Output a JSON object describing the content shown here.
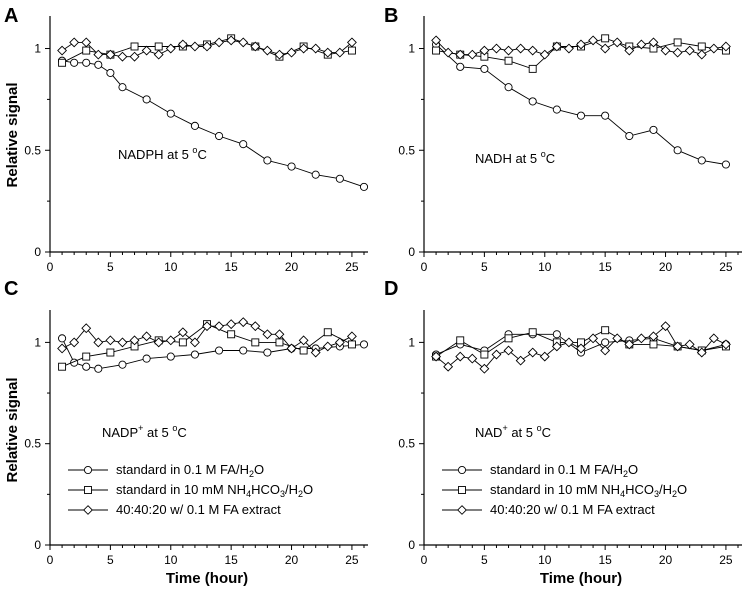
{
  "chart_data": [
    {
      "panel": "A",
      "type": "line",
      "annotation": {
        "main": "NADPH at 5 ",
        "sup": "o",
        "tail": "C"
      },
      "ylabel": "Relative signal",
      "xlabel": "",
      "xlim": [
        0,
        26
      ],
      "ylim": [
        0,
        1.15
      ],
      "xticks": [
        "0",
        "5",
        "10",
        "15",
        "20",
        "25"
      ],
      "yticks": [
        "0",
        "0.5",
        "1"
      ],
      "legend": [],
      "series": [
        {
          "name": "standard in 0.1 M FA/H2O",
          "marker": "circle",
          "x": [
            1,
            2,
            3,
            4,
            5,
            6,
            8,
            10,
            12,
            14,
            16,
            18,
            20,
            22,
            24,
            26
          ],
          "y": [
            0.94,
            0.93,
            0.93,
            0.92,
            0.88,
            0.81,
            0.75,
            0.68,
            0.62,
            0.57,
            0.53,
            0.45,
            0.42,
            0.38,
            0.36,
            0.32
          ]
        },
        {
          "name": "standard in 10 mM NH4HCO3/H2O",
          "marker": "square",
          "x": [
            1,
            3,
            5,
            7,
            9,
            11,
            13,
            15,
            17,
            19,
            21,
            23,
            25
          ],
          "y": [
            0.93,
            0.99,
            0.97,
            1.01,
            1.01,
            1.01,
            1.02,
            1.05,
            1.01,
            0.96,
            1.01,
            0.97,
            0.99
          ]
        },
        {
          "name": "40:40:20 w/ 0.1 M FA extract",
          "marker": "diamond",
          "x": [
            1,
            2,
            3,
            4,
            5,
            6,
            7,
            8,
            9,
            10,
            11,
            12,
            13,
            14,
            15,
            16,
            17,
            18,
            19,
            20,
            21,
            22,
            23,
            24,
            25
          ],
          "y": [
            0.99,
            1.03,
            1.03,
            0.97,
            0.97,
            0.96,
            0.96,
            0.99,
            0.97,
            1.0,
            1.02,
            1.01,
            1.01,
            1.03,
            1.04,
            1.03,
            1.01,
            0.99,
            0.97,
            0.98,
            1.0,
            1.0,
            0.98,
            0.98,
            1.03
          ]
        }
      ]
    },
    {
      "panel": "B",
      "type": "line",
      "annotation": {
        "main": "NADH at 5 ",
        "sup": "o",
        "tail": "C"
      },
      "ylabel": "",
      "xlabel": "",
      "xlim": [
        0,
        26
      ],
      "ylim": [
        0,
        1.15
      ],
      "xticks": [
        "0",
        "5",
        "10",
        "15",
        "20",
        "25"
      ],
      "yticks": [
        "0",
        "0.5",
        "1"
      ],
      "legend": [],
      "series": [
        {
          "name": "standard in 0.1 M FA/H2O",
          "marker": "circle",
          "x": [
            1,
            3,
            5,
            7,
            9,
            11,
            13,
            15,
            17,
            19,
            21,
            23,
            25
          ],
          "y": [
            1.02,
            0.91,
            0.9,
            0.81,
            0.74,
            0.7,
            0.67,
            0.67,
            0.57,
            0.6,
            0.5,
            0.45,
            0.43
          ]
        },
        {
          "name": "standard in 10 mM NH4HCO3/H2O",
          "marker": "square",
          "x": [
            1,
            3,
            5,
            7,
            9,
            11,
            13,
            15,
            17,
            19,
            21,
            23,
            25
          ],
          "y": [
            0.99,
            0.97,
            0.96,
            0.94,
            0.9,
            1.01,
            1.01,
            1.05,
            1.01,
            1.0,
            1.03,
            1.01,
            0.99
          ]
        },
        {
          "name": "40:40:20 w/ 0.1 M FA extract",
          "marker": "diamond",
          "x": [
            1,
            2,
            3,
            4,
            5,
            6,
            7,
            8,
            9,
            10,
            11,
            12,
            13,
            14,
            15,
            16,
            17,
            18,
            19,
            20,
            21,
            22,
            23,
            24,
            25
          ],
          "y": [
            1.04,
            0.98,
            0.97,
            0.97,
            0.99,
            1.0,
            0.99,
            1.0,
            0.99,
            0.97,
            1.01,
            1.0,
            1.02,
            1.04,
            1.0,
            1.03,
            0.99,
            1.02,
            1.03,
            0.99,
            0.98,
            0.99,
            0.97,
            1.0,
            1.01
          ]
        }
      ]
    },
    {
      "panel": "C",
      "type": "line",
      "annotation": {
        "main": "NADP",
        "supPlus": "+",
        "mid": " at 5 ",
        "sup": "o",
        "tail": "C"
      },
      "ylabel": "Relative signal",
      "xlabel": "Time (hour)",
      "xlim": [
        0,
        26
      ],
      "ylim": [
        0,
        1.15
      ],
      "xticks": [
        "0",
        "5",
        "10",
        "15",
        "20",
        "25"
      ],
      "yticks": [
        "0",
        "0.5",
        "1"
      ],
      "legend": [
        "standard in 0.1 M FA/H2O",
        "standard in 10 mM NH4HCO3/H2O",
        "40:40:20 w/ 0.1 M FA extract"
      ],
      "series": [
        {
          "name": "standard in 0.1 M FA/H2O",
          "marker": "circle",
          "x": [
            1,
            2,
            3,
            4,
            6,
            8,
            10,
            12,
            14,
            16,
            18,
            20,
            22,
            24,
            26
          ],
          "y": [
            1.02,
            0.9,
            0.88,
            0.87,
            0.89,
            0.92,
            0.93,
            0.94,
            0.96,
            0.96,
            0.95,
            0.97,
            0.97,
            0.98,
            0.99
          ]
        },
        {
          "name": "standard in 10 mM NH4HCO3/H2O",
          "marker": "square",
          "x": [
            1,
            3,
            5,
            7,
            9,
            11,
            13,
            15,
            17,
            19,
            21,
            23,
            25
          ],
          "y": [
            0.88,
            0.93,
            0.95,
            0.98,
            1.01,
            1.0,
            1.09,
            1.04,
            1.0,
            1.0,
            0.96,
            1.05,
            0.99
          ]
        },
        {
          "name": "40:40:20 w/ 0.1 M FA extract",
          "marker": "diamond",
          "x": [
            1,
            2,
            3,
            4,
            5,
            6,
            7,
            8,
            9,
            10,
            11,
            12,
            13,
            14,
            15,
            16,
            17,
            18,
            19,
            20,
            21,
            22,
            23,
            24,
            25
          ],
          "y": [
            0.97,
            1.0,
            1.07,
            1.0,
            1.01,
            1.0,
            1.01,
            1.03,
            1.0,
            1.01,
            1.05,
            1.0,
            1.08,
            1.08,
            1.09,
            1.1,
            1.08,
            1.04,
            1.04,
            0.97,
            1.01,
            0.95,
            0.98,
            1.0,
            1.03
          ]
        }
      ]
    },
    {
      "panel": "D",
      "type": "line",
      "annotation": {
        "main": "NAD",
        "supPlus": "+",
        "mid": " at 5 ",
        "sup": "o",
        "tail": "C"
      },
      "ylabel": "",
      "xlabel": "Time (hour)",
      "xlim": [
        0,
        26
      ],
      "ylim": [
        0,
        1.15
      ],
      "xticks": [
        "0",
        "5",
        "10",
        "15",
        "20",
        "25"
      ],
      "yticks": [
        "0",
        "0.5",
        "1"
      ],
      "legend": [
        "standard in 0.1 M FA/H2O",
        "standard in 10 mM NH4HCO3/H2O",
        "40:40:20 w/ 0.1 M FA extract"
      ],
      "series": [
        {
          "name": "standard in 0.1 M FA/H2O",
          "marker": "circle",
          "x": [
            1,
            3,
            5,
            7,
            9,
            11,
            13,
            15,
            17,
            19,
            21,
            23,
            25
          ],
          "y": [
            0.94,
            0.99,
            0.96,
            1.04,
            1.04,
            1.04,
            0.95,
            1.0,
            1.01,
            1.02,
            0.98,
            0.96,
            0.99
          ]
        },
        {
          "name": "standard in 10 mM NH4HCO3/H2O",
          "marker": "square",
          "x": [
            1,
            3,
            5,
            7,
            9,
            11,
            13,
            15,
            17,
            19,
            21,
            23,
            25
          ],
          "y": [
            0.93,
            1.01,
            0.94,
            1.02,
            1.05,
            1.0,
            1.0,
            1.06,
            0.99,
            0.99,
            0.98,
            0.96,
            0.98
          ]
        },
        {
          "name": "40:40:20 w/ 0.1 M FA extract",
          "marker": "diamond",
          "x": [
            1,
            2,
            3,
            4,
            5,
            6,
            7,
            8,
            9,
            10,
            11,
            12,
            13,
            14,
            15,
            16,
            17,
            18,
            19,
            20,
            21,
            22,
            23,
            24,
            25
          ],
          "y": [
            0.93,
            0.88,
            0.93,
            0.92,
            0.87,
            0.94,
            0.96,
            0.91,
            0.95,
            0.93,
            0.98,
            1.0,
            0.97,
            1.02,
            0.96,
            1.02,
            0.99,
            1.02,
            1.03,
            1.08,
            0.98,
            0.99,
            0.95,
            1.02,
            0.99
          ]
        }
      ]
    }
  ]
}
